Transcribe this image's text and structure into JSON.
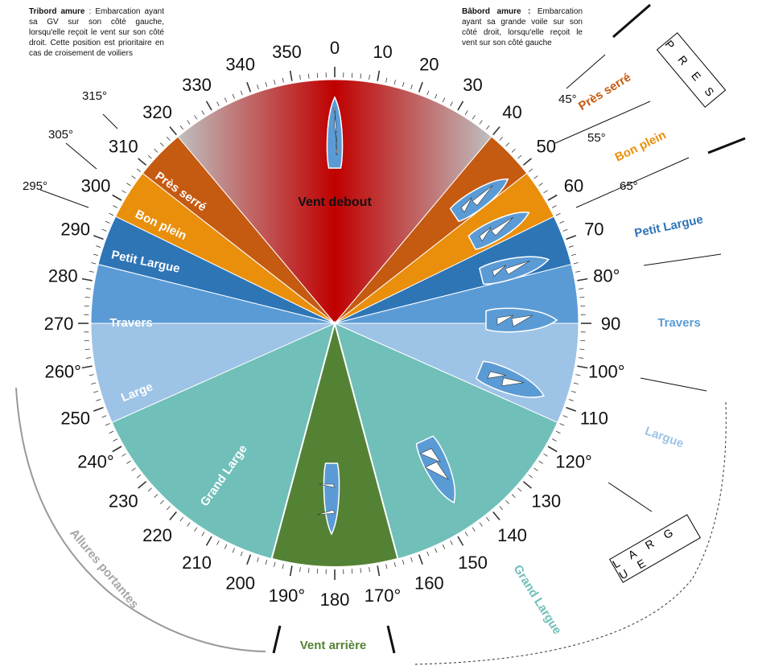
{
  "notes": {
    "tribord_bold": "Tribord amure",
    "tribord_text": " : Embarcation ayant sa GV sur son côté gauche, lorsqu'elle reçoit le vent sur son côté droit. Cette position est prioritaire en cas de croisement de voiliers",
    "babord_bold": "Bâbord amure :",
    "babord_text": " Embarcation ayant sa grande voile sur son côté droit, lorsqu'elle reçoit le vent sur son côté gauche"
  },
  "boxes": {
    "pres": "P R E S",
    "largue": "L A R G U E"
  },
  "center_label": "Vent debout",
  "bottom_label": "Vent arrière",
  "arc_label": "Allures portantes",
  "sectors_left": [
    {
      "label": "Près serré",
      "color": "#c55a11"
    },
    {
      "label": "Bon plein",
      "color": "#e98f0c"
    },
    {
      "label": "Petit Largue",
      "color": "#2e75b6"
    },
    {
      "label": "Travers",
      "color": "#5b9bd5"
    },
    {
      "label": "Large",
      "color": "#9dc3e6"
    },
    {
      "label": "Grand Large",
      "color": "#70bfb9"
    }
  ],
  "sectors_right_labels": [
    {
      "label": "Près serré",
      "color": "#c55a11"
    },
    {
      "label": "Bon plein",
      "color": "#e98f0c"
    },
    {
      "label": "Petit Largue",
      "color": "#2e75b6"
    },
    {
      "label": "Travers",
      "color": "#5b9bd5"
    },
    {
      "label": "Largue",
      "color": "#9dc3e6"
    },
    {
      "label": "Grand Largue",
      "color": "#70bfb9"
    }
  ],
  "colors": {
    "vent_debout_red": "#c00000",
    "vent_debout_grey": "#bfbfbf",
    "vent_arriere": "#548235",
    "boat": "#5b9bd5"
  },
  "compass_numbers": [
    "0",
    "10",
    "20",
    "30",
    "40",
    "50",
    "60",
    "70",
    "80°",
    "90",
    "100°",
    "110",
    "120°",
    "130",
    "140",
    "150",
    "160",
    "170°",
    "180",
    "190°",
    "200",
    "210",
    "220",
    "230",
    "240°",
    "250",
    "260°",
    "270",
    "280",
    "290",
    "300",
    "310",
    "320",
    "330",
    "340",
    "350"
  ],
  "callouts_right": [
    "45°",
    "55°",
    "65°"
  ],
  "callouts_left": [
    "315°",
    "305°",
    "295°"
  ]
}
